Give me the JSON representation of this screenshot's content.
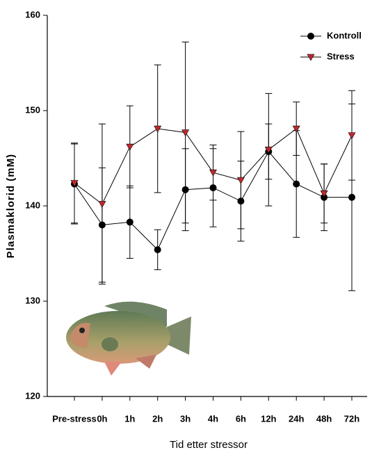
{
  "chart_data": {
    "type": "line",
    "xlabel": "Tid etter stressor",
    "ylabel": "Plasmaklorid (mM)",
    "categories": [
      "Pre-stress",
      "0h",
      "1h",
      "2h",
      "3h",
      "4h",
      "6h",
      "12h",
      "24h",
      "48h",
      "72h"
    ],
    "series": [
      {
        "name": "Kontroll",
        "color": "#000000",
        "marker": "circle",
        "values": [
          142.3,
          138.0,
          138.3,
          135.4,
          141.7,
          141.9,
          140.5,
          145.7,
          142.3,
          140.9,
          140.9
        ],
        "errors": [
          4.2,
          6.0,
          3.8,
          2.1,
          4.3,
          4.1,
          4.2,
          2.9,
          5.6,
          3.5,
          9.8
        ]
      },
      {
        "name": "Stress",
        "color": "#c0282d",
        "marker": "triangle-down",
        "values": [
          142.4,
          140.2,
          146.2,
          148.1,
          147.7,
          143.5,
          142.7,
          145.9,
          148.1,
          141.3,
          147.4
        ],
        "errors": [
          4.2,
          8.4,
          4.3,
          6.7,
          9.5,
          2.9,
          5.1,
          5.9,
          2.8,
          3.1,
          4.7
        ]
      }
    ],
    "ylim": [
      120,
      160
    ],
    "yticks": [
      120,
      130,
      140,
      150,
      160
    ],
    "legend": "upper right"
  }
}
